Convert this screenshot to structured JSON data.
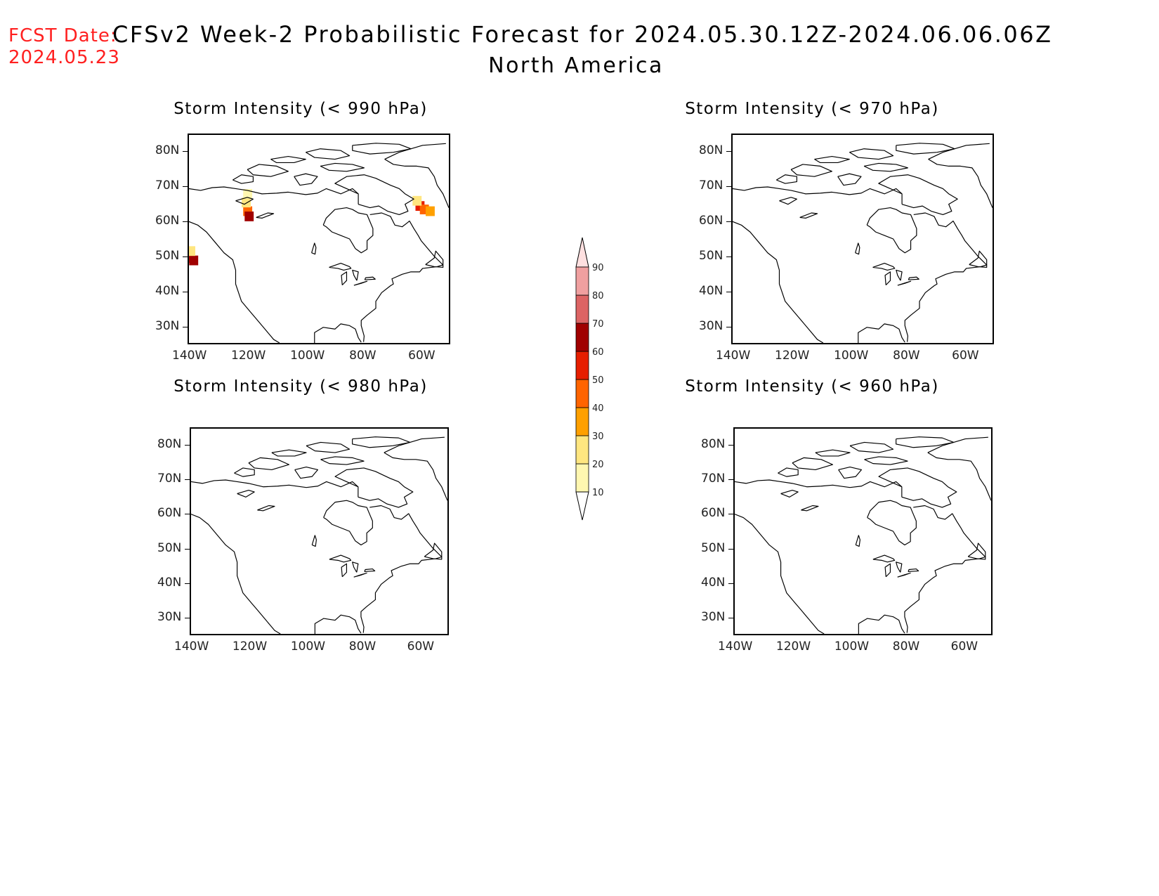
{
  "header": {
    "fcst_label": "FCST Date:",
    "fcst_date": "2024.05.23",
    "title": "CFSv2 Week-2 Probabilistic Forecast for 2024.05.30.12Z-2024.06.06.06Z",
    "subtitle": "North America"
  },
  "axes": {
    "lat_ticks": [
      "80N",
      "70N",
      "60N",
      "50N",
      "40N",
      "30N"
    ],
    "lon_ticks": [
      "140W",
      "120W",
      "100W",
      "80W",
      "60W"
    ]
  },
  "panels": [
    {
      "id": "p990",
      "title": "Storm Intensity (< 990 hPa)",
      "blobs": [
        {
          "lon": -139.5,
          "lat": 49.5,
          "prob": 55
        },
        {
          "lon": -138.5,
          "lat": 48.8,
          "prob": 65
        },
        {
          "lon": -139.5,
          "lat": 51.5,
          "prob": 20
        },
        {
          "lon": -120.0,
          "lat": 63.0,
          "prob": 45
        },
        {
          "lon": -119.5,
          "lat": 61.5,
          "prob": 60
        },
        {
          "lon": -120.5,
          "lat": 65.5,
          "prob": 25
        },
        {
          "lon": -120.0,
          "lat": 68.0,
          "prob": 15
        },
        {
          "lon": -61.0,
          "lat": 64.5,
          "prob": 55
        },
        {
          "lon": -59.5,
          "lat": 63.5,
          "prob": 45
        },
        {
          "lon": -57.5,
          "lat": 63.0,
          "prob": 30
        },
        {
          "lon": -62.0,
          "lat": 66.0,
          "prob": 25
        }
      ]
    },
    {
      "id": "p970",
      "title": "Storm Intensity (< 970 hPa)",
      "blobs": []
    },
    {
      "id": "p980",
      "title": "Storm Intensity (< 980 hPa)",
      "blobs": []
    },
    {
      "id": "p960",
      "title": "Storm Intensity (< 960 hPa)",
      "blobs": []
    }
  ],
  "colorbar": {
    "labels": [
      "10",
      "20",
      "30",
      "40",
      "50",
      "60",
      "70",
      "80",
      "90"
    ],
    "colors": [
      "#fff7b0",
      "#ffe680",
      "#ffa000",
      "#ff6400",
      "#e61e00",
      "#a00000",
      "#dc6464",
      "#f0a0a0",
      "#ffe0e0"
    ],
    "below_color": "#ffffff"
  }
}
